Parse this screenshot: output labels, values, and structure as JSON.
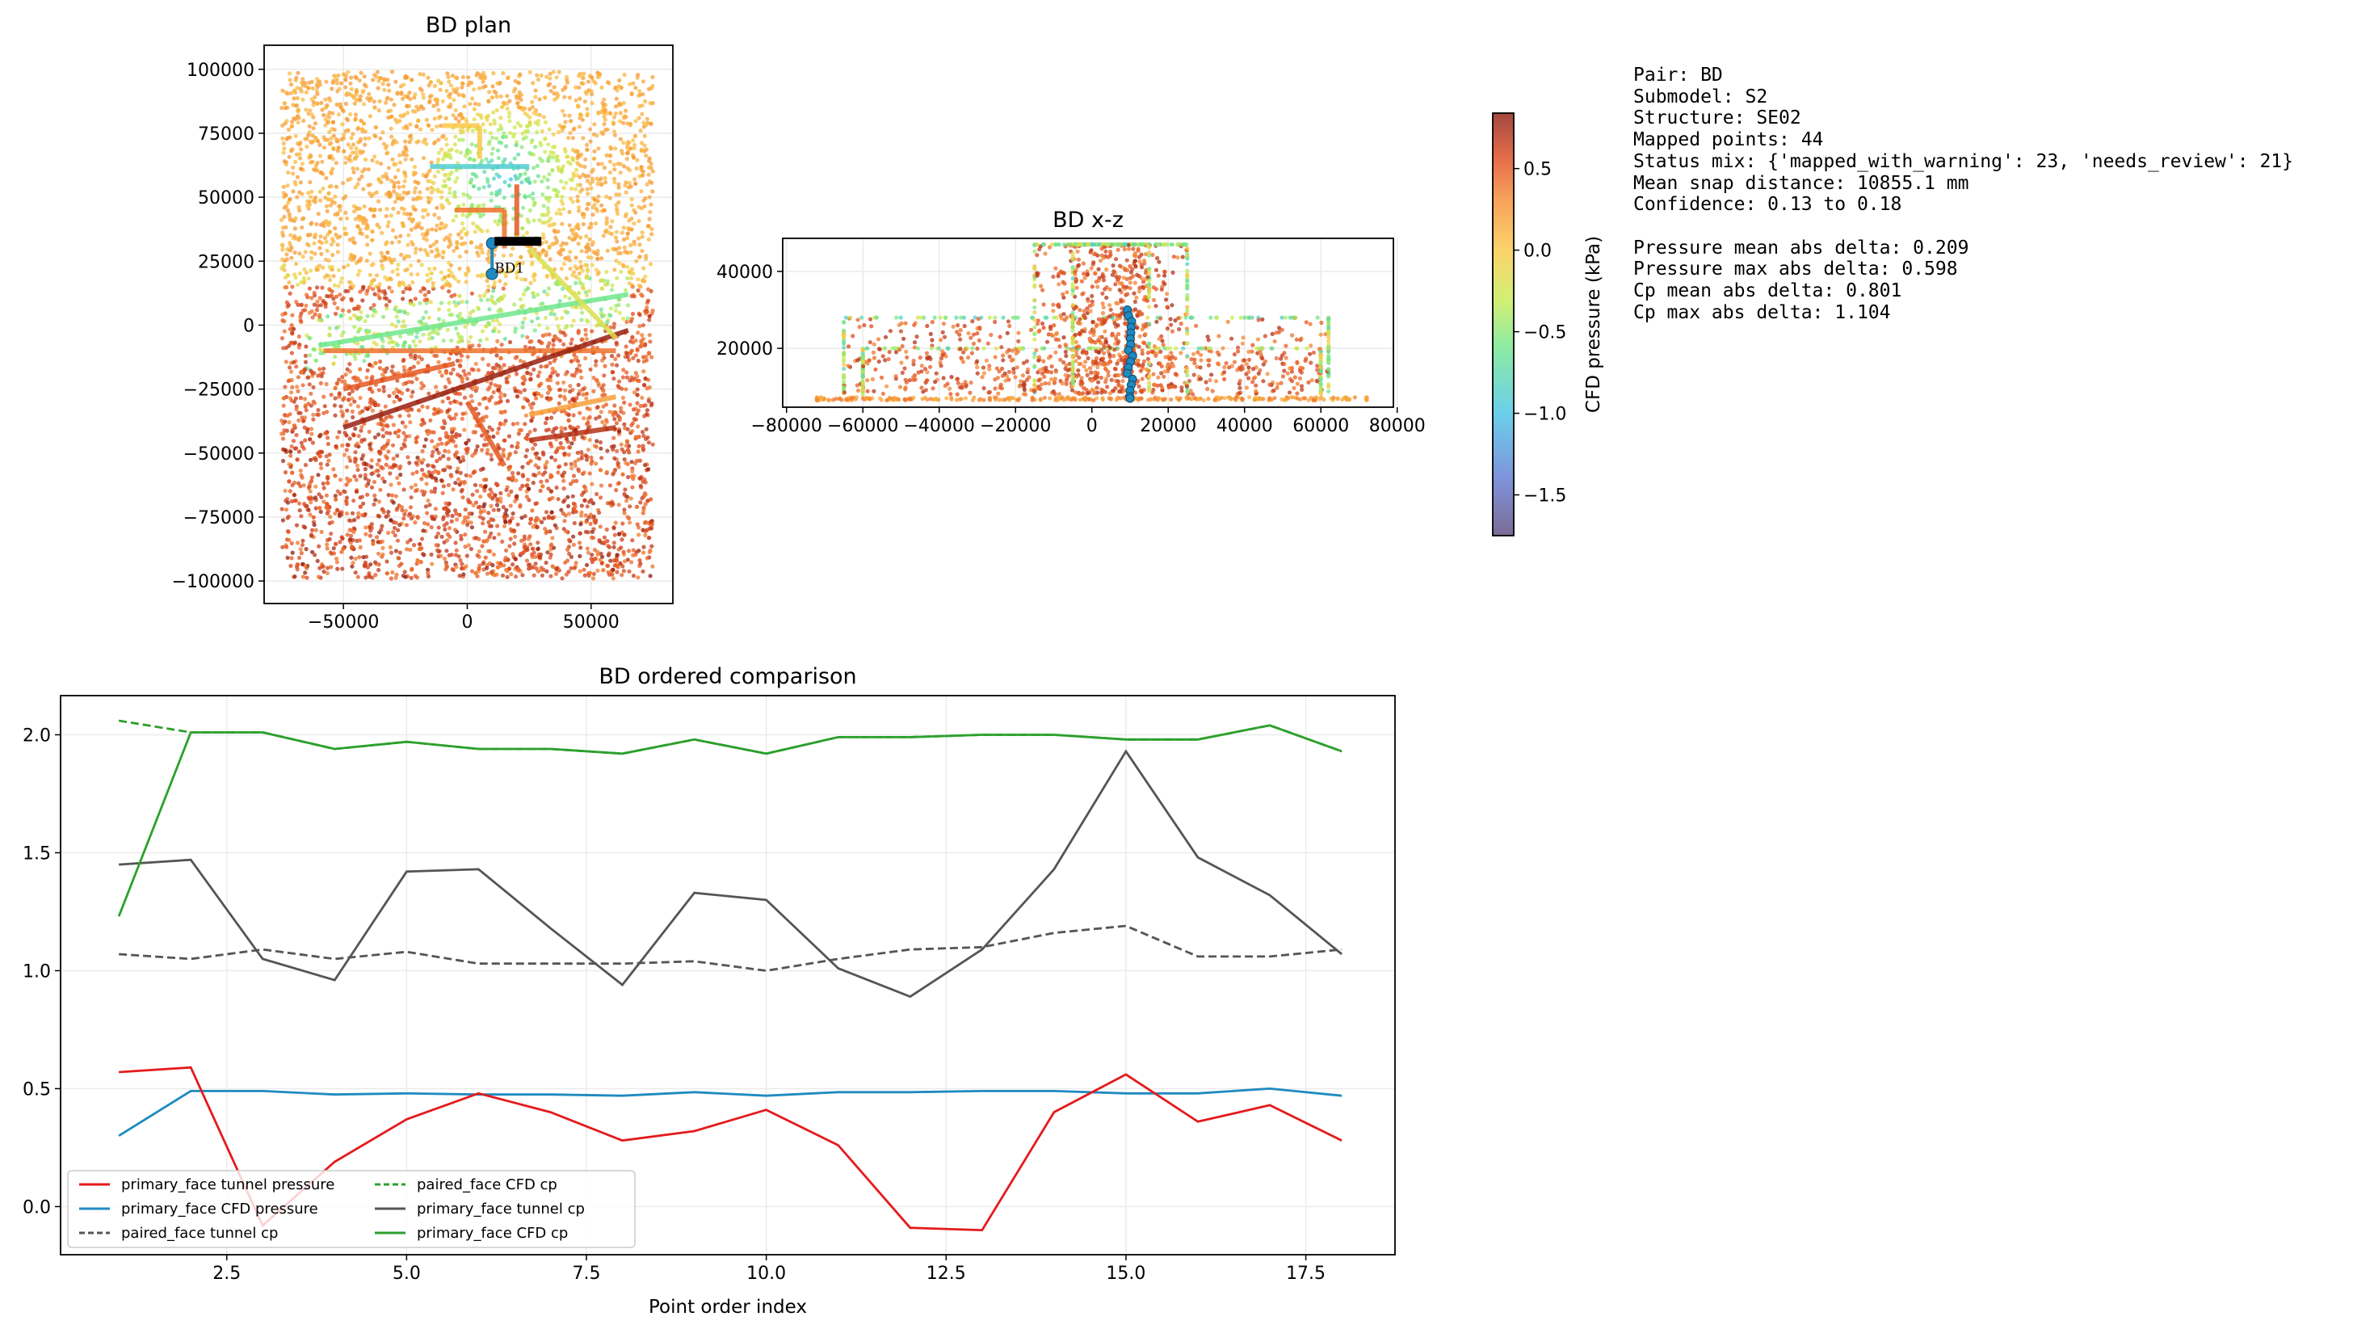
{
  "plan": {
    "title": "BD plan",
    "type": "scatter",
    "xlim": [
      -82000,
      83000
    ],
    "ylim": [
      -108800,
      109400
    ],
    "xticks": [
      -50000,
      0,
      50000
    ],
    "yticks": [
      100000,
      75000,
      50000,
      25000,
      0,
      -25000,
      -50000,
      -75000,
      -100000
    ],
    "annotation": "BD1"
  },
  "xz": {
    "title": "BD x-z",
    "type": "scatter",
    "xlim": [
      -81000,
      79000
    ],
    "ylim": [
      4700,
      48600
    ],
    "xticks": [
      -80000,
      -60000,
      -40000,
      -20000,
      0,
      20000,
      40000,
      60000,
      80000
    ],
    "yticks": [
      40000,
      20000
    ]
  },
  "colorbar": {
    "label": "CFD pressure (kPa)",
    "range": [
      -1.75,
      0.84
    ],
    "ticks": [
      0.5,
      0.0,
      -0.5,
      -1.0,
      -1.5
    ]
  },
  "info": {
    "lines": [
      "Pair: BD",
      "Submodel: S2",
      "Structure: SE02",
      "Mapped points: 44",
      "Status mix: {'mapped_with_warning': 23, 'needs_review': 21}",
      "Mean snap distance: 10855.1 mm",
      "Confidence: 0.13 to 0.18",
      "",
      "Pressure mean abs delta: 0.209",
      "Pressure max abs delta: 0.598",
      "Cp mean abs delta: 0.801",
      "Cp max abs delta: 1.104"
    ]
  },
  "chart_data": {
    "type": "line",
    "title": "BD ordered comparison",
    "xlabel": "Point order index",
    "ylabel": "",
    "xlim": [
      0.19,
      18.74
    ],
    "ylim": [
      -0.204,
      2.166
    ],
    "xticks": [
      2.5,
      5.0,
      7.5,
      10.0,
      12.5,
      15.0,
      17.5
    ],
    "yticks": [
      0.0,
      0.5,
      1.0,
      1.5,
      2.0
    ],
    "grid": true,
    "legend_position": "lower-left",
    "x": [
      1,
      2,
      3,
      4,
      5,
      6,
      7,
      8,
      9,
      10,
      11,
      12,
      13,
      14,
      15,
      16,
      17,
      18
    ],
    "series": [
      {
        "name": "primary_face tunnel pressure",
        "color": "#e41a1c",
        "dash": false,
        "values": [
          0.57,
          0.59,
          -0.08,
          0.19,
          0.37,
          0.48,
          0.4,
          0.28,
          0.32,
          0.41,
          0.26,
          -0.09,
          -0.1,
          0.4,
          0.56,
          0.36,
          0.43,
          0.28
        ]
      },
      {
        "name": "primary_face CFD pressure",
        "color": "#1f8ac0",
        "dash": false,
        "values": [
          0.3,
          0.49,
          0.49,
          0.475,
          0.48,
          0.475,
          0.475,
          0.47,
          0.485,
          0.47,
          0.485,
          0.485,
          0.49,
          0.49,
          0.48,
          0.48,
          0.5,
          0.47
        ]
      },
      {
        "name": "paired_face tunnel cp",
        "color": "#555555",
        "dash": true,
        "values": [
          1.07,
          1.05,
          1.09,
          1.05,
          1.08,
          1.03,
          1.03,
          1.03,
          1.04,
          1.0,
          1.05,
          1.09,
          1.1,
          1.16,
          1.19,
          1.06,
          1.06,
          1.09
        ]
      },
      {
        "name": "paired_face CFD cp",
        "color": "#2ca02c",
        "dash": true,
        "values": [
          2.06,
          2.01,
          2.01,
          1.94,
          1.97,
          1.94,
          1.94,
          1.92,
          1.98,
          1.92,
          1.99,
          1.99,
          2.0,
          2.0,
          1.98,
          1.98,
          2.04,
          1.93
        ]
      },
      {
        "name": "primary_face tunnel cp",
        "color": "#555555",
        "dash": false,
        "values": [
          1.45,
          1.47,
          1.05,
          0.96,
          1.42,
          1.43,
          1.18,
          0.94,
          1.33,
          1.3,
          1.01,
          0.89,
          1.09,
          1.43,
          1.93,
          1.48,
          1.32,
          1.07
        ]
      },
      {
        "name": "primary_face CFD cp",
        "color": "#2ca02c",
        "dash": false,
        "values": [
          1.23,
          2.01,
          2.01,
          1.94,
          1.97,
          1.94,
          1.94,
          1.92,
          1.98,
          1.92,
          1.99,
          1.99,
          2.0,
          2.0,
          1.98,
          1.98,
          2.04,
          1.93
        ]
      }
    ]
  }
}
